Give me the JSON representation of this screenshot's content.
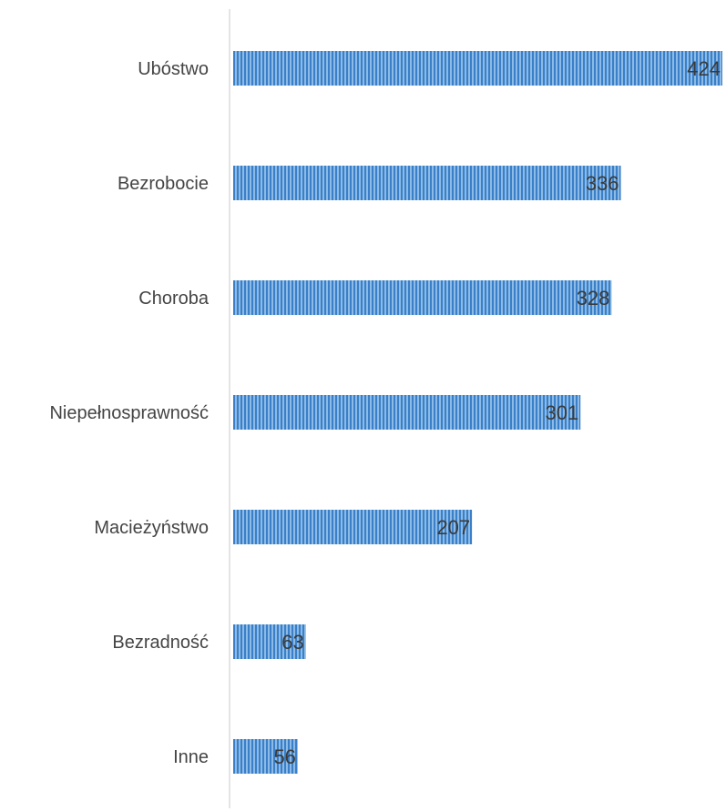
{
  "chart_data": {
    "type": "bar",
    "orientation": "horizontal",
    "title": "",
    "xlabel": "",
    "ylabel": "",
    "categories": [
      "Ubóstwo",
      "Bezrobocie",
      "Choroba",
      "Niepełnosprawność",
      "Macieżyństwo",
      "Bezradność",
      "Inne"
    ],
    "values": [
      424,
      336,
      328,
      301,
      207,
      63,
      56
    ],
    "xlim": [
      0,
      424
    ],
    "grid": false,
    "legend": "none",
    "data_labels": true,
    "colors": {
      "bar": "#5b9bd5",
      "bar_stripe": "#2e6fb8",
      "axis": "#c8c8c8",
      "label": "#444444"
    }
  }
}
